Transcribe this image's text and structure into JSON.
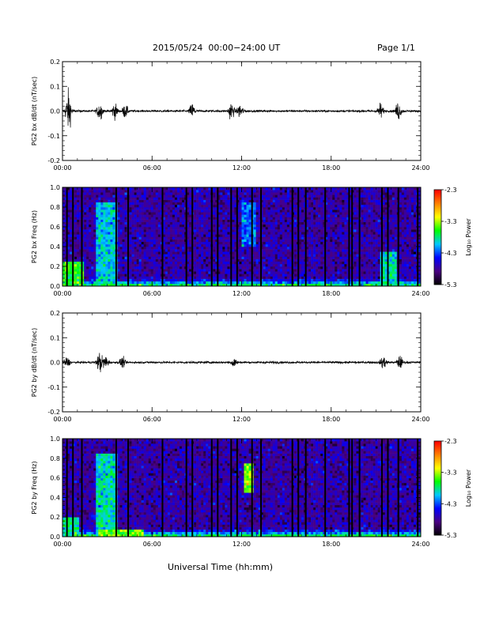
{
  "header": {
    "title": "2015/05/24  00:00−24:00 UT",
    "page": "Page 1/1"
  },
  "footer": {
    "xlabel": "Universal Time (hh:mm)"
  },
  "colors": {
    "trace": "#000000",
    "colormap": [
      "#000000",
      "#4b0082",
      "#0000ff",
      "#00c8ff",
      "#00ff00",
      "#ffff00",
      "#ff8000",
      "#ff0000"
    ]
  },
  "chart_data": [
    {
      "type": "line",
      "ylabel": "PG2 bx dB/dt (nT/sec)",
      "xlim": [
        0,
        24
      ],
      "ylim": [
        -0.2,
        0.2
      ],
      "xticks": [
        "00:00",
        "06:00",
        "12:00",
        "18:00",
        "24:00"
      ],
      "yticks": [
        "-0.2",
        "-0.1",
        "0.0",
        "0.1",
        "0.2"
      ],
      "bursts": [
        {
          "center_hr": 0.4,
          "amplitude": 0.08
        },
        {
          "center_hr": 2.5,
          "amplitude": 0.035
        },
        {
          "center_hr": 3.5,
          "amplitude": 0.03
        },
        {
          "center_hr": 4.2,
          "amplitude": 0.025
        },
        {
          "center_hr": 8.7,
          "amplitude": 0.03
        },
        {
          "center_hr": 11.3,
          "amplitude": 0.035
        },
        {
          "center_hr": 11.9,
          "amplitude": 0.03
        },
        {
          "center_hr": 21.3,
          "amplitude": 0.03
        },
        {
          "center_hr": 22.5,
          "amplitude": 0.035
        }
      ],
      "baseline_noise": 0.004
    },
    {
      "type": "heatmap",
      "ylabel": "PG2 bx Freq (Hz)",
      "xlim": [
        0,
        24
      ],
      "ylim": [
        0,
        1
      ],
      "xticks": [
        "00:00",
        "06:00",
        "12:00",
        "18:00",
        "24:00"
      ],
      "yticks": [
        "0.0",
        "0.2",
        "0.4",
        "0.6",
        "0.8",
        "1.0"
      ],
      "colorbar": {
        "label": "Log₁₀ Power",
        "ticks": [
          "-2.3",
          "-3.3",
          "-4.3",
          "-5.3"
        ],
        "range": [
          -5.3,
          -2.3
        ]
      },
      "data_gaps_hr": [
        0.3,
        0.7,
        1.3,
        3.6,
        4.4,
        6.7,
        8.3,
        8.7,
        10.0,
        10.4,
        11.3,
        11.7,
        12.7,
        13.3,
        15.4,
        15.8,
        16.3,
        17.6,
        19.2,
        19.4,
        19.9,
        21.4,
        21.8,
        22.5,
        23.8
      ],
      "enhancements": [
        {
          "time_hr": [
            0.0,
            1.5
          ],
          "freq_hz": [
            0.0,
            0.25
          ],
          "level": -3.6
        },
        {
          "time_hr": [
            2.2,
            3.6
          ],
          "freq_hz": [
            0.0,
            0.85
          ],
          "level": -4.0
        },
        {
          "time_hr": [
            12.0,
            12.9
          ],
          "freq_hz": [
            0.4,
            0.85
          ],
          "level": -4.2
        },
        {
          "time_hr": [
            21.3,
            22.4
          ],
          "freq_hz": [
            0.0,
            0.35
          ],
          "level": -3.9
        }
      ]
    },
    {
      "type": "line",
      "ylabel": "PG2 by dB/dt (nT/sec)",
      "xlim": [
        0,
        24
      ],
      "ylim": [
        -0.2,
        0.2
      ],
      "xticks": [
        "00:00",
        "06:00",
        "12:00",
        "18:00",
        "24:00"
      ],
      "yticks": [
        "-0.2",
        "-0.1",
        "0.0",
        "0.1",
        "0.2"
      ],
      "bursts": [
        {
          "center_hr": 0.3,
          "amplitude": 0.02
        },
        {
          "center_hr": 2.5,
          "amplitude": 0.04
        },
        {
          "center_hr": 2.9,
          "amplitude": 0.025
        },
        {
          "center_hr": 4.0,
          "amplitude": 0.02
        },
        {
          "center_hr": 11.5,
          "amplitude": 0.02
        },
        {
          "center_hr": 21.5,
          "amplitude": 0.025
        },
        {
          "center_hr": 22.6,
          "amplitude": 0.025
        }
      ],
      "baseline_noise": 0.004
    },
    {
      "type": "heatmap",
      "ylabel": "PG2 by Freq (Hz)",
      "xlim": [
        0,
        24
      ],
      "ylim": [
        0,
        1
      ],
      "xticks": [
        "00:00",
        "06:00",
        "12:00",
        "18:00",
        "24:00"
      ],
      "yticks": [
        "0.0",
        "0.2",
        "0.4",
        "0.6",
        "0.8",
        "1.0"
      ],
      "colorbar": {
        "label": "Log₁₀ Power",
        "ticks": [
          "-2.3",
          "-3.3",
          "-4.3",
          "-5.3"
        ],
        "range": [
          -5.3,
          -2.3
        ]
      },
      "data_gaps_hr": [
        0.3,
        0.7,
        1.3,
        3.6,
        4.4,
        6.7,
        8.3,
        8.7,
        10.0,
        10.4,
        11.3,
        11.7,
        12.7,
        13.3,
        15.4,
        15.8,
        16.3,
        17.6,
        19.2,
        19.4,
        19.9,
        21.4,
        21.8,
        22.5,
        23.8
      ],
      "enhancements": [
        {
          "time_hr": [
            0.0,
            1.2
          ],
          "freq_hz": [
            0.0,
            0.2
          ],
          "level": -3.8
        },
        {
          "time_hr": [
            2.2,
            3.6
          ],
          "freq_hz": [
            0.0,
            0.85
          ],
          "level": -3.9
        },
        {
          "time_hr": [
            12.2,
            12.8
          ],
          "freq_hz": [
            0.45,
            0.75
          ],
          "level": -3.4
        },
        {
          "time_hr": [
            2.4,
            5.5
          ],
          "freq_hz": [
            0.0,
            0.08
          ],
          "level": -3.4
        }
      ]
    }
  ]
}
